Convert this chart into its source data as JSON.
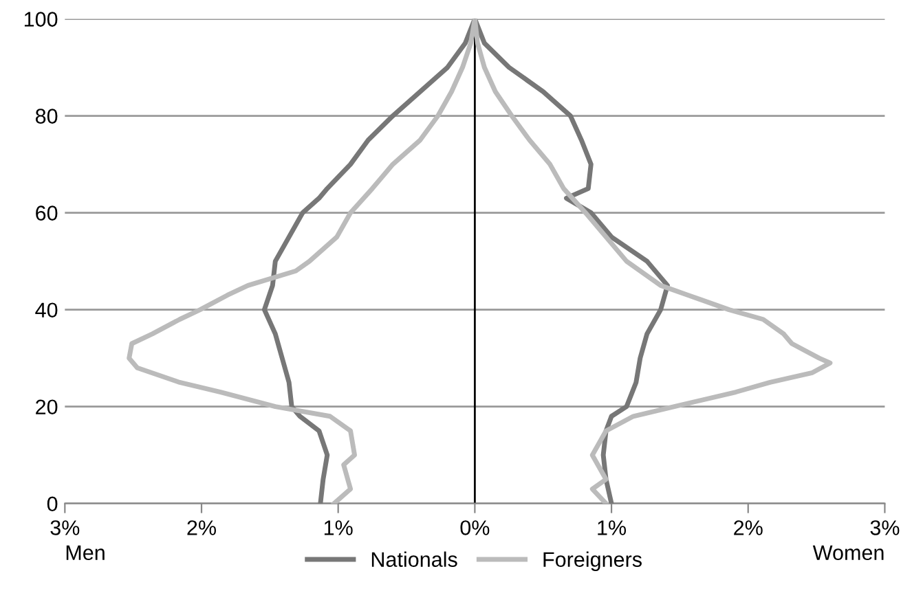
{
  "chart_data": {
    "type": "line",
    "ylim": [
      0,
      100
    ],
    "yticks": [
      0,
      20,
      40,
      60,
      80,
      100
    ],
    "xlim": [
      -3,
      3
    ],
    "xticks": [
      {
        "value": -3,
        "label": "3%"
      },
      {
        "value": -2,
        "label": "2%"
      },
      {
        "value": -1,
        "label": "1%"
      },
      {
        "value": 0,
        "label": "0%"
      },
      {
        "value": 1,
        "label": "1%"
      },
      {
        "value": 2,
        "label": "2%"
      },
      {
        "value": 3,
        "label": "3%"
      }
    ],
    "grid": "y",
    "legend": "bottom",
    "marker": "none",
    "line_style": "solid",
    "ref_lines": [
      {
        "axis": "x",
        "value": 0,
        "label": null,
        "color": "#000000"
      }
    ],
    "annotations": [
      "Men",
      "Women"
    ],
    "series": [
      {
        "name": "Nationals",
        "color": "#777777",
        "x": [
          -1.13,
          -1.11,
          -1.08,
          -1.14,
          -1.28,
          -1.34,
          -1.36,
          -1.41,
          -1.46,
          -1.54,
          -1.48,
          -1.46,
          -1.36,
          -1.26,
          -1.14,
          -1.08,
          -0.91,
          -0.78,
          -0.6,
          -0.4,
          -0.2,
          -0.07,
          0,
          0.07,
          0.25,
          0.5,
          0.7,
          0.78,
          0.85,
          0.83,
          0.67,
          0.85,
          1.0,
          1.26,
          1.41,
          1.36,
          1.26,
          1.21,
          1.18,
          1.11,
          1.0,
          0.96,
          0.94,
          0.96,
          1.0
        ],
        "values": [
          0,
          5,
          10,
          15,
          18,
          20,
          25,
          30,
          35,
          40,
          45,
          50,
          55,
          60,
          63,
          65,
          70,
          75,
          80,
          85,
          90,
          95,
          100,
          95,
          90,
          85,
          80,
          75,
          70,
          65,
          63,
          60,
          55,
          50,
          45,
          40,
          35,
          30,
          25,
          20,
          18,
          15,
          10,
          5,
          0
        ]
      },
      {
        "name": "Foreigners",
        "color": "#bbbbbb",
        "x": [
          -1.03,
          -0.91,
          -0.96,
          -0.88,
          -0.91,
          -1.06,
          -1.46,
          -1.86,
          -2.16,
          -2.47,
          -2.53,
          -2.51,
          -2.36,
          -2.16,
          -2.01,
          -1.81,
          -1.66,
          -1.31,
          -1.21,
          -1.01,
          -0.91,
          -0.75,
          -0.6,
          -0.4,
          -0.27,
          -0.17,
          -0.09,
          -0.03,
          0,
          0.02,
          0.07,
          0.15,
          0.27,
          0.4,
          0.55,
          0.65,
          0.81,
          0.96,
          1.11,
          1.36,
          1.56,
          1.86,
          2.11,
          2.26,
          2.32,
          2.52,
          2.6,
          2.47,
          2.16,
          1.91,
          1.46,
          1.16,
          0.96,
          0.86,
          0.96,
          0.86,
          0.96
        ],
        "values": [
          0,
          3,
          8,
          10,
          15,
          18,
          20,
          23,
          25,
          28,
          30,
          33,
          35,
          38,
          40,
          43,
          45,
          48,
          50,
          55,
          60,
          65,
          70,
          75,
          80,
          85,
          90,
          95,
          100,
          95,
          90,
          85,
          80,
          75,
          70,
          65,
          60,
          55,
          50,
          45,
          43,
          40,
          38,
          35,
          33,
          30,
          29,
          27,
          25,
          23,
          20,
          18,
          15,
          10,
          5,
          3,
          0
        ]
      }
    ]
  }
}
